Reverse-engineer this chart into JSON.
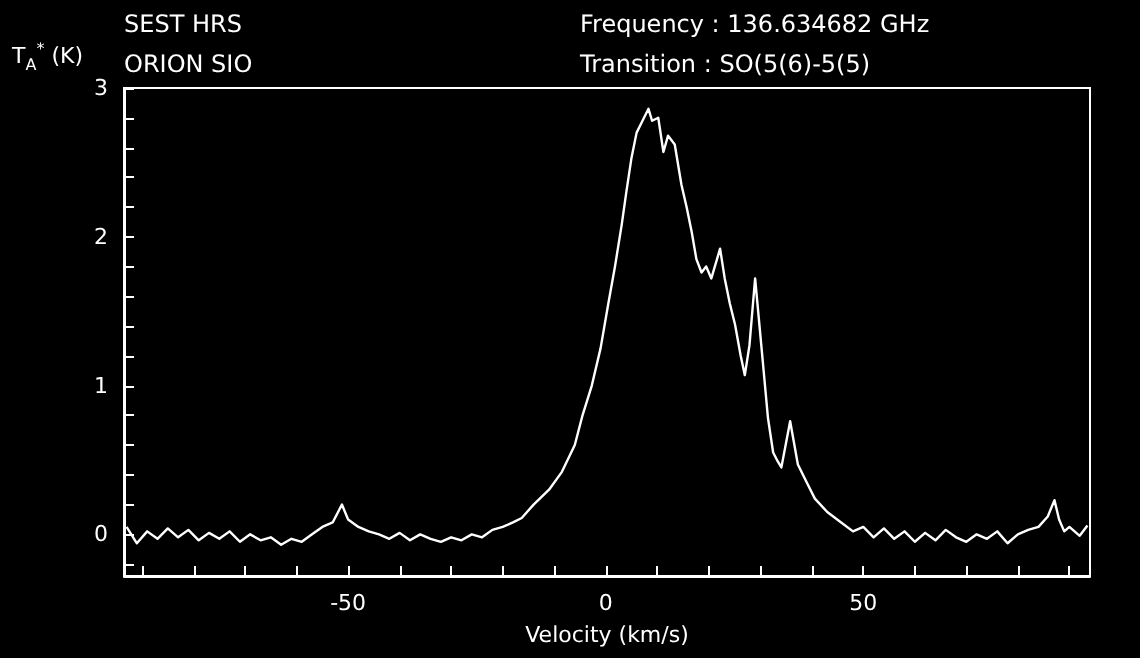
{
  "chart_data": {
    "type": "line",
    "xlabel": "Velocity (km/s)",
    "ylabel": "T$_{A}$$^{*}$ (K)",
    "annotations": [
      "SEST HRS",
      "ORION SIO",
      "Frequency : 136.634682 GHz",
      "Transition : SO(5(6)-5(5)"
    ],
    "xlim": [
      -93.5,
      94
    ],
    "ylim": [
      -0.28,
      3
    ],
    "xticks": [
      {
        "value": -90,
        "label": null
      },
      {
        "value": -80,
        "label": null
      },
      {
        "value": -70,
        "label": null
      },
      {
        "value": -60,
        "label": null
      },
      -50,
      {
        "value": -40,
        "label": null
      },
      {
        "value": -30,
        "label": null
      },
      {
        "value": -20,
        "label": null
      },
      {
        "value": -10,
        "label": null
      },
      0,
      {
        "value": 10,
        "label": null
      },
      {
        "value": 20,
        "label": null
      },
      {
        "value": 30,
        "label": null
      },
      {
        "value": 40,
        "label": null
      },
      50,
      {
        "value": 60,
        "label": null
      },
      {
        "value": 70,
        "label": null
      },
      {
        "value": 80,
        "label": null
      },
      {
        "value": 90,
        "label": null
      }
    ],
    "yticks": [
      {
        "value": -0.2,
        "label": null
      },
      0,
      {
        "value": 0.2,
        "label": null
      },
      {
        "value": 0.4,
        "label": null
      },
      {
        "value": 0.6,
        "label": null
      },
      {
        "value": 0.8,
        "label": null
      },
      1,
      {
        "value": 1.2,
        "label": null
      },
      {
        "value": 1.4,
        "label": null
      },
      {
        "value": 1.6,
        "label": null
      },
      {
        "value": 1.8,
        "label": null
      },
      2,
      {
        "value": 2.2,
        "label": null
      },
      {
        "value": 2.4,
        "label": null
      },
      {
        "value": 2.6,
        "label": null
      },
      {
        "value": 2.8,
        "label": null
      },
      3
    ],
    "marker": "none",
    "line_style": "solid",
    "series": [
      {
        "color": "#ffffff",
        "x": [
          -93,
          -91,
          -89,
          -87,
          -85,
          -83,
          -81,
          -79,
          -77,
          -75,
          -73,
          -71,
          -69,
          -67,
          -65,
          -63,
          -61,
          -59,
          -57,
          -55,
          -53,
          -51.2,
          -50,
          -48,
          -46,
          -44,
          -42,
          -40,
          -38,
          -36,
          -34,
          -32,
          -30,
          -28,
          -26,
          -24,
          -22,
          -20,
          -18,
          -16.3,
          -14,
          -11,
          -8.5,
          -6,
          -4.5,
          -2.7,
          -1,
          0.5,
          1.8,
          3.1,
          4,
          5,
          6,
          7,
          8.3,
          9,
          10.2,
          11.2,
          12.1,
          13.4,
          14.7,
          15.7,
          16.7,
          17.6,
          18.6,
          19.5,
          20.5,
          22.2,
          23.1,
          24.1,
          25.1,
          26.2,
          27,
          27.9,
          29,
          30.2,
          31.5,
          32.5,
          33.4,
          34.1,
          35.8,
          37.3,
          39,
          40.6,
          43,
          45.7,
          48,
          50,
          52,
          54,
          56,
          58,
          60,
          62,
          64,
          66,
          68,
          70,
          72,
          74,
          76,
          78,
          80,
          82,
          84,
          85.8,
          87.1,
          88,
          89,
          90,
          92,
          93.5
        ],
        "values": [
          0.05,
          -0.06,
          0.02,
          -0.03,
          0.04,
          -0.02,
          0.03,
          -0.04,
          0.01,
          -0.03,
          0.02,
          -0.05,
          0.0,
          -0.04,
          -0.02,
          -0.07,
          -0.03,
          -0.05,
          0.0,
          0.05,
          0.08,
          0.2,
          0.1,
          0.05,
          0.02,
          0.0,
          -0.03,
          0.01,
          -0.04,
          0.0,
          -0.03,
          -0.05,
          -0.02,
          -0.04,
          0.0,
          -0.02,
          0.03,
          0.05,
          0.08,
          0.11,
          0.2,
          0.3,
          0.42,
          0.6,
          0.8,
          1.0,
          1.25,
          1.55,
          1.8,
          2.08,
          2.3,
          2.53,
          2.7,
          2.77,
          2.86,
          2.78,
          2.8,
          2.57,
          2.68,
          2.62,
          2.35,
          2.2,
          2.03,
          1.85,
          1.76,
          1.8,
          1.72,
          1.92,
          1.72,
          1.55,
          1.41,
          1.2,
          1.07,
          1.27,
          1.72,
          1.27,
          0.78,
          0.55,
          0.49,
          0.45,
          0.76,
          0.47,
          0.35,
          0.24,
          0.15,
          0.08,
          0.02,
          0.05,
          -0.02,
          0.04,
          -0.03,
          0.02,
          -0.05,
          0.01,
          -0.04,
          0.03,
          -0.02,
          -0.05,
          0.0,
          -0.03,
          0.02,
          -0.06,
          0.0,
          0.03,
          0.05,
          0.12,
          0.23,
          0.1,
          0.02,
          0.05,
          -0.01,
          0.06
        ]
      }
    ]
  }
}
